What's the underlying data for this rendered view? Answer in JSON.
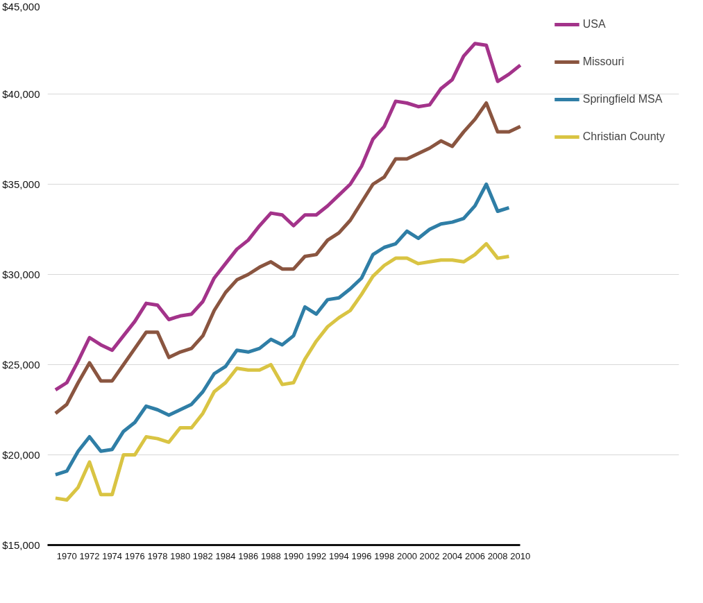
{
  "chart_data": {
    "type": "line",
    "x": [
      1969,
      1970,
      1971,
      1972,
      1973,
      1974,
      1975,
      1976,
      1977,
      1978,
      1979,
      1980,
      1981,
      1982,
      1983,
      1984,
      1985,
      1986,
      1987,
      1988,
      1989,
      1990,
      1991,
      1992,
      1993,
      1994,
      1995,
      1996,
      1997,
      1998,
      1999,
      2000,
      2001,
      2002,
      2003,
      2004,
      2005,
      2006,
      2007,
      2008,
      2009,
      2010
    ],
    "series": [
      {
        "name": "USA",
        "color": "#a3338a",
        "values": [
          23600,
          24000,
          25200,
          26500,
          26100,
          25800,
          26600,
          27400,
          28400,
          28300,
          27500,
          27700,
          27800,
          28500,
          29800,
          30600,
          31400,
          31900,
          32700,
          33400,
          33300,
          32700,
          33300,
          33300,
          33800,
          34400,
          35000,
          36000,
          37500,
          38200,
          39600,
          39500,
          39300,
          39400,
          40300,
          40800,
          42100,
          42800,
          42700,
          40700,
          41100,
          41600
        ]
      },
      {
        "name": "Missouri",
        "color": "#8a5540",
        "values": [
          22300,
          22800,
          24000,
          25100,
          24100,
          24100,
          25000,
          25900,
          26800,
          26800,
          25400,
          25700,
          25900,
          26600,
          28000,
          29000,
          29700,
          30000,
          30400,
          30700,
          30300,
          30300,
          31000,
          31100,
          31900,
          32300,
          33000,
          34000,
          35000,
          35400,
          36400,
          36400,
          36700,
          37000,
          37400,
          37100,
          37900,
          38600,
          39500,
          37900,
          37900,
          38200
        ]
      },
      {
        "name": "Springfield MSA",
        "color": "#2f7ea6",
        "values": [
          18900,
          19100,
          20200,
          21000,
          20200,
          20300,
          21300,
          21800,
          22700,
          22500,
          22200,
          22500,
          22800,
          23500,
          24500,
          24900,
          25800,
          25700,
          25900,
          26400,
          26100,
          26600,
          28200,
          27800,
          28600,
          28700,
          29200,
          29800,
          31100,
          31500,
          31700,
          32400,
          32000,
          32500,
          32800,
          32900,
          33100,
          33800,
          35000,
          33500,
          33700,
          null
        ]
      },
      {
        "name": "Christian County",
        "color": "#d9c443",
        "values": [
          17600,
          17500,
          18200,
          19600,
          17800,
          17800,
          20000,
          20000,
          21000,
          20900,
          20700,
          21500,
          21500,
          22300,
          23500,
          24000,
          24800,
          24700,
          24700,
          25000,
          23900,
          24000,
          25300,
          26300,
          27100,
          27600,
          28000,
          28900,
          29900,
          30500,
          30900,
          30900,
          30600,
          30700,
          30800,
          30800,
          30700,
          31100,
          31700,
          30900,
          31000,
          null
        ]
      }
    ],
    "xlim": [
      1968.3,
      2024
    ],
    "xticks": [
      1970,
      1972,
      1974,
      1976,
      1978,
      1980,
      1982,
      1984,
      1986,
      1988,
      1990,
      1992,
      1994,
      1996,
      1998,
      2000,
      2002,
      2004,
      2006,
      2008,
      2010
    ],
    "ylim": [
      15000,
      45000
    ],
    "yticks": [
      {
        "value": 15000,
        "label": "$15,000"
      },
      {
        "value": 20000,
        "label": "$20,000"
      },
      {
        "value": 25000,
        "label": "$25,000"
      },
      {
        "value": 30000,
        "label": "$30,000"
      },
      {
        "value": 35000,
        "label": "$35,000"
      },
      {
        "value": 40000,
        "label": "$40,000"
      },
      {
        "value": 45000,
        "label": "$45,000"
      }
    ],
    "grid": "y",
    "legend": "top right",
    "line_style": "solid",
    "marker": "none"
  }
}
